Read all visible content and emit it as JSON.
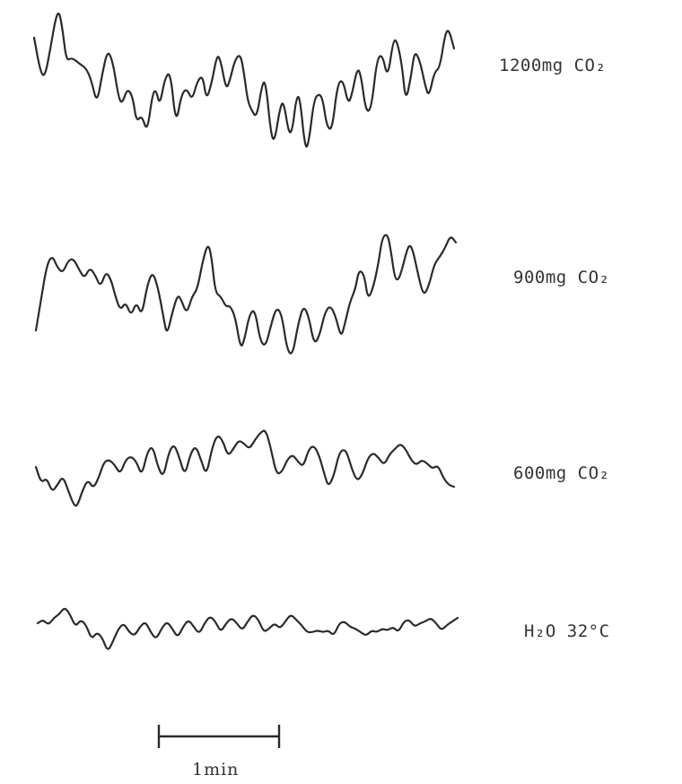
{
  "traces": [
    {
      "label": "1200mg CO₂"
    },
    {
      "label": "900mg CO₂"
    },
    {
      "label": "600mg CO₂"
    },
    {
      "label": "H₂O 32°C"
    }
  ],
  "scale_bar": {
    "label": "1min"
  }
}
